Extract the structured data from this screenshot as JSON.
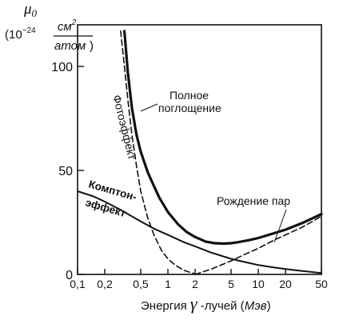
{
  "chart_data": {
    "type": "line",
    "y_axis": {
      "symbol": "μ",
      "subscript": "0",
      "unit_prefix": "(10",
      "unit_exp": "−24",
      "unit_num": "см",
      "unit_num_exp": "2",
      "unit_den": "атом",
      "unit_close": ")",
      "ylim": [
        0,
        120
      ],
      "ticks": [
        0,
        50,
        100
      ],
      "tick_labels": [
        "0",
        "50",
        "100"
      ]
    },
    "x_axis": {
      "label_pre": "Энергия ",
      "label_gamma": "γ",
      "label_mid": " -лучей (",
      "label_unit": "Мэв",
      "label_post": ")",
      "scale": "log",
      "xlim": [
        0.1,
        50
      ],
      "ticks": [
        0.1,
        0.2,
        0.5,
        1,
        2,
        5,
        10,
        20,
        50
      ],
      "tick_labels": [
        "0,1",
        "0,2",
        "0,5",
        "1",
        "2",
        "5",
        "10",
        "20",
        "50"
      ]
    },
    "series": [
      {
        "name": "Полное поглощение",
        "style": "thick-solid",
        "x": [
          0.33,
          0.36,
          0.4,
          0.45,
          0.5,
          0.6,
          0.7,
          0.8,
          1.0,
          1.3,
          1.6,
          2.0,
          2.6,
          3.3,
          4.2,
          5.0,
          6.0,
          8.0,
          10,
          15,
          20,
          30,
          40,
          50
        ],
        "y": [
          117,
          97,
          80,
          67,
          59,
          49,
          42.5,
          37,
          30,
          24,
          20.5,
          18,
          15.8,
          15,
          14.8,
          15,
          15.5,
          16.5,
          17.5,
          19.8,
          21.5,
          24.5,
          27,
          29
        ]
      },
      {
        "name": "Фотоэффект",
        "style": "dashed",
        "x": [
          0.3,
          0.33,
          0.36,
          0.4,
          0.45,
          0.5,
          0.6,
          0.7,
          0.85,
          1.0,
          1.2,
          1.5,
          1.8,
          2.0
        ],
        "y": [
          117,
          100,
          84,
          67,
          52,
          40,
          27,
          19,
          11.5,
          7.5,
          4.5,
          2,
          0.8,
          0.3
        ]
      },
      {
        "name": "Комптон-эффект",
        "style": "solid",
        "x": [
          0.1,
          0.15,
          0.2,
          0.3,
          0.5,
          0.7,
          1.0,
          1.5,
          2.0,
          3.0,
          5.0,
          7.0,
          10,
          15,
          20,
          30,
          40,
          50
        ],
        "y": [
          40,
          37.5,
          35,
          31,
          25.5,
          22,
          19,
          15.5,
          13.5,
          10.5,
          7.5,
          6,
          4.5,
          3.3,
          2.6,
          1.7,
          1.1,
          0.6
        ]
      },
      {
        "name": "Рождение пар",
        "style": "dashed",
        "x": [
          2.0,
          3.0,
          5.0,
          7.0,
          10,
          15,
          20,
          30,
          40,
          50
        ],
        "y": [
          0,
          2.5,
          6.5,
          9.5,
          12.5,
          16.5,
          19,
          22.5,
          25.5,
          28
        ]
      }
    ],
    "labels": {
      "total_line1": "Полное",
      "total_line2": "поглощение",
      "photo": "Фотоэффект",
      "compton_line1": "Комптон-",
      "compton_line2": "эффект",
      "pair": "Рождение пар"
    },
    "grid": false,
    "legend": "none"
  }
}
